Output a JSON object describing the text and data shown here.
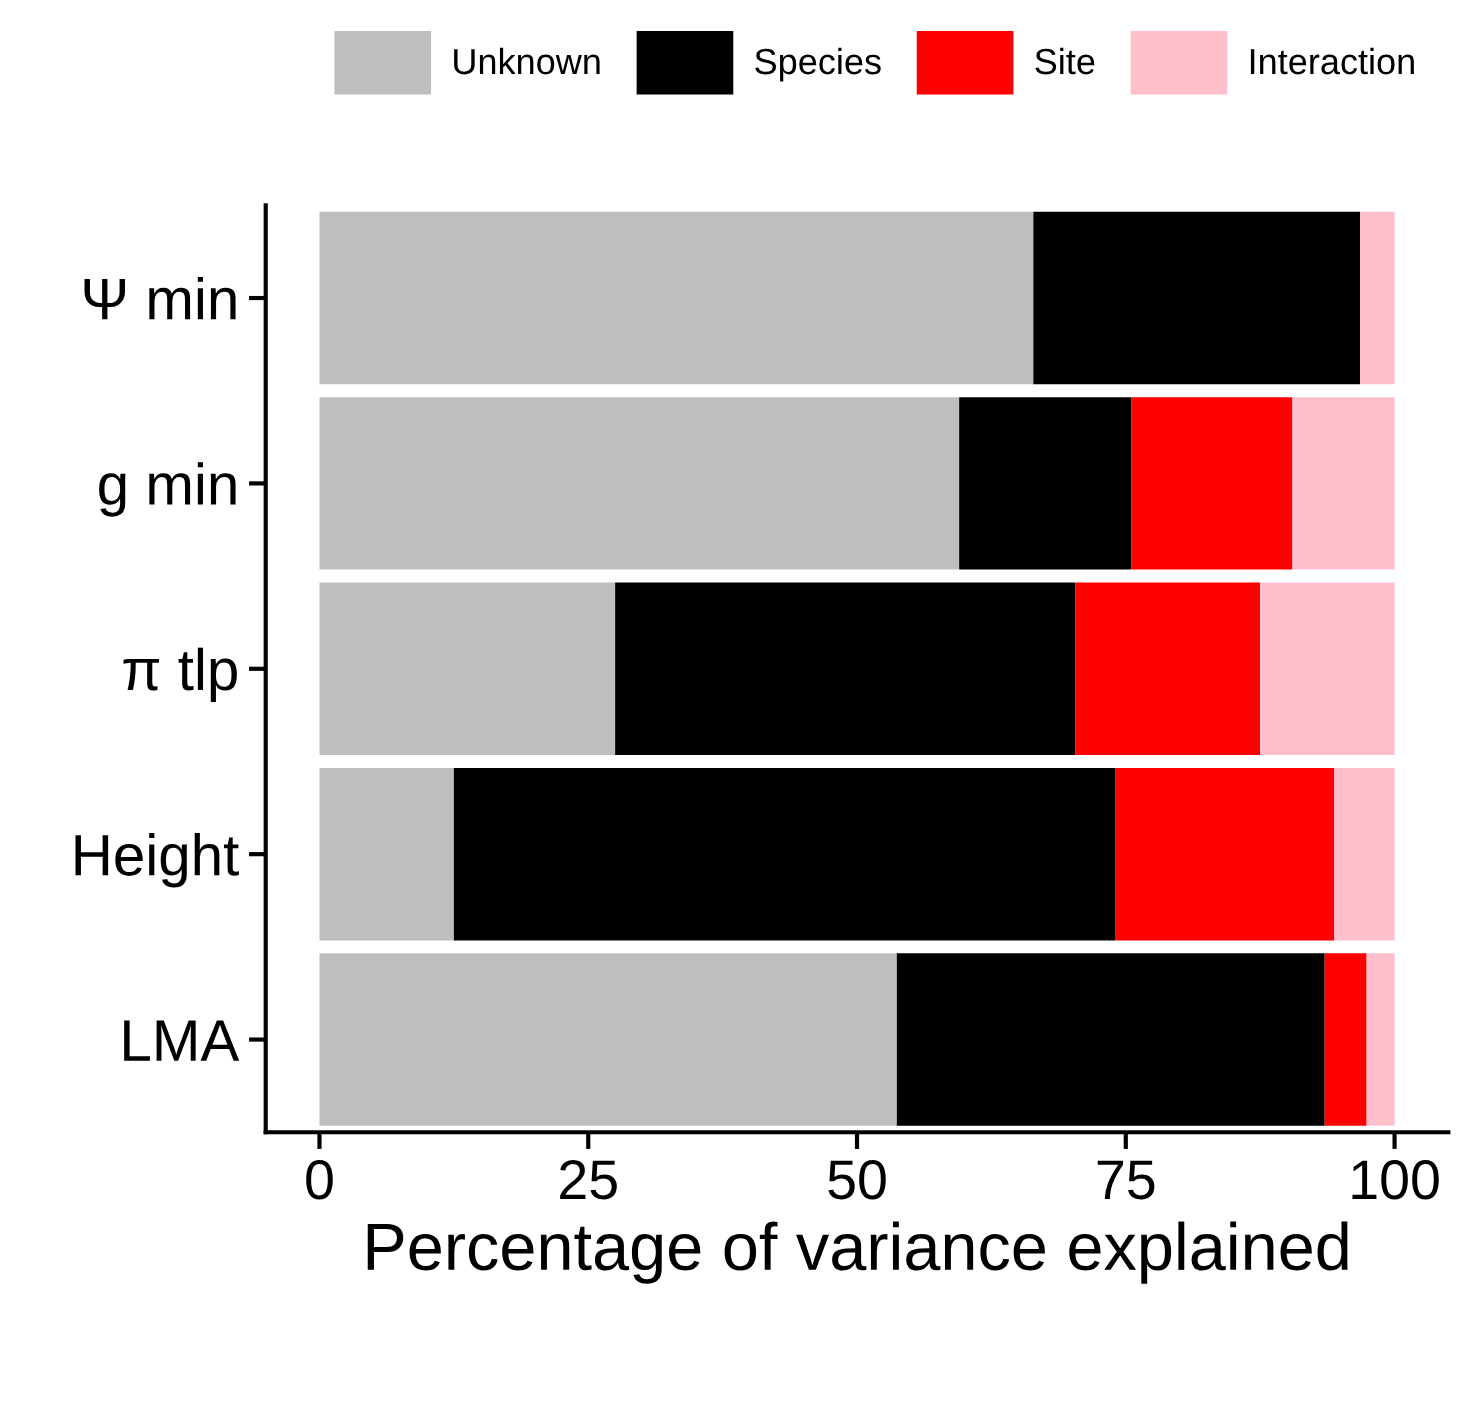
{
  "chart_data": {
    "type": "bar",
    "orientation": "horizontal",
    "stacked": true,
    "categories": [
      "Ψ min",
      "g min",
      "π tlp",
      "Height",
      "LMA"
    ],
    "series": [
      {
        "name": "Unknown",
        "color": "#bebebe",
        "values": [
          66.4,
          59.5,
          27.5,
          12.5,
          53.7
        ]
      },
      {
        "name": "Species",
        "color": "#000000",
        "values": [
          30.4,
          16.0,
          42.8,
          61.5,
          39.8
        ]
      },
      {
        "name": "Site",
        "color": "#ff0000",
        "values": [
          0,
          15.0,
          17.2,
          20.4,
          3.9
        ]
      },
      {
        "name": "Interaction",
        "color": "#ffc0cb",
        "values": [
          3.2,
          9.5,
          12.5,
          5.6,
          2.6
        ]
      }
    ],
    "xlabel": "Percentage of variance explained",
    "xlim": [
      -5,
      105
    ],
    "xticks": [
      0,
      25,
      50,
      75,
      100
    ],
    "grid": false,
    "legend": "top"
  }
}
